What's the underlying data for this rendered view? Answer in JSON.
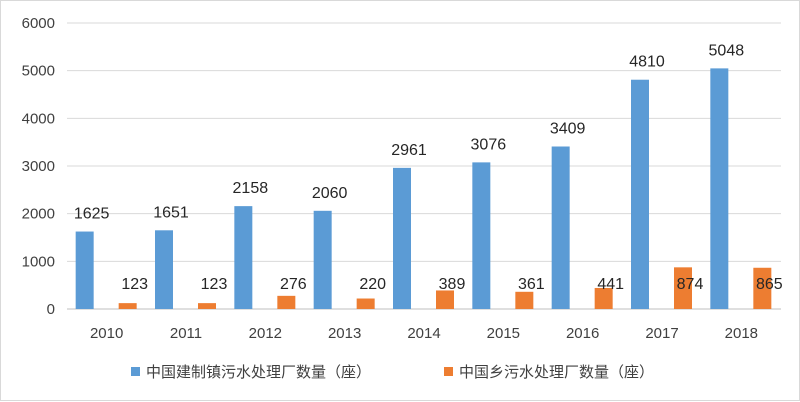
{
  "chart_data": {
    "type": "bar",
    "categories": [
      "2010",
      "2011",
      "2012",
      "2013",
      "2014",
      "2015",
      "2016",
      "2017",
      "2018"
    ],
    "series": [
      {
        "name": "中国建制镇污水处理厂数量（座）",
        "color": "#5b9bd5",
        "values": [
          1625,
          1651,
          2158,
          2060,
          2961,
          3076,
          3409,
          4810,
          5048
        ]
      },
      {
        "name": "中国乡污水处理厂数量（座）",
        "color": "#ed7d31",
        "values": [
          123,
          123,
          276,
          220,
          389,
          361,
          441,
          874,
          865
        ]
      }
    ],
    "ylim": [
      0,
      6000
    ],
    "yticks": [
      0,
      1000,
      2000,
      3000,
      4000,
      5000,
      6000
    ],
    "grid": true,
    "legend_position": "bottom",
    "title": "",
    "xlabel": "",
    "ylabel": ""
  }
}
